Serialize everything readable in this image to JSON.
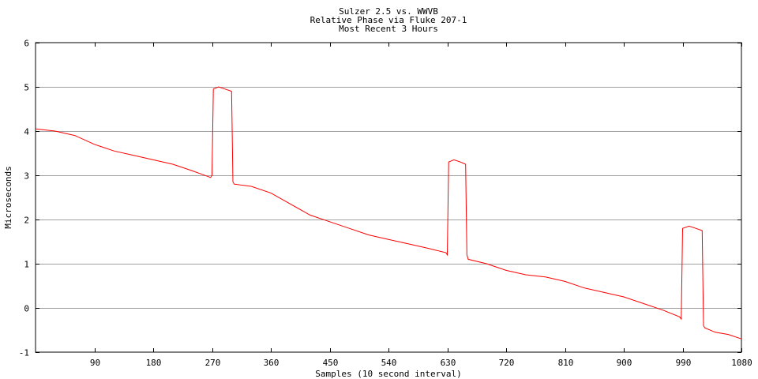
{
  "chart_data": {
    "type": "line",
    "title": [
      "Sulzer 2.5 vs. WWVB",
      "Relative Phase via Fluke 207-1",
      "Most Recent 3 Hours"
    ],
    "xlabel": "Samples (10 second interval)",
    "ylabel": "Microseconds",
    "xlim": [
      0,
      1080
    ],
    "ylim": [
      -1,
      6
    ],
    "xticks": [
      90,
      180,
      270,
      360,
      450,
      540,
      630,
      720,
      810,
      900,
      990,
      1080
    ],
    "yticks": [
      -1,
      0,
      1,
      2,
      3,
      4,
      5,
      6
    ],
    "grid": "horizontal",
    "line_color": "#ff0000",
    "series": [
      {
        "x": [
          0,
          30,
          60,
          90,
          120,
          150,
          180,
          210,
          240,
          268,
          270,
          272,
          280,
          290,
          300,
          302,
          304,
          330,
          360,
          390,
          420,
          450,
          480,
          510,
          540,
          570,
          600,
          628,
          630,
          632,
          640,
          650,
          658,
          660,
          662,
          690,
          720,
          750,
          780,
          810,
          840,
          870,
          900,
          930,
          960,
          985,
          988,
          990,
          1000,
          1010,
          1020,
          1022,
          1024,
          1040,
          1060,
          1080
        ],
        "y": [
          4.05,
          4.0,
          3.9,
          3.7,
          3.55,
          3.45,
          3.35,
          3.25,
          3.1,
          2.95,
          3.0,
          4.95,
          5.0,
          4.95,
          4.9,
          2.85,
          2.8,
          2.75,
          2.6,
          2.35,
          2.1,
          1.95,
          1.8,
          1.65,
          1.55,
          1.45,
          1.35,
          1.25,
          1.2,
          3.3,
          3.35,
          3.3,
          3.25,
          1.2,
          1.1,
          1.0,
          0.85,
          0.75,
          0.7,
          0.6,
          0.45,
          0.35,
          0.25,
          0.1,
          -0.05,
          -0.2,
          -0.25,
          1.8,
          1.85,
          1.8,
          1.75,
          -0.4,
          -0.45,
          -0.55,
          -0.6,
          -0.7
        ]
      }
    ]
  }
}
